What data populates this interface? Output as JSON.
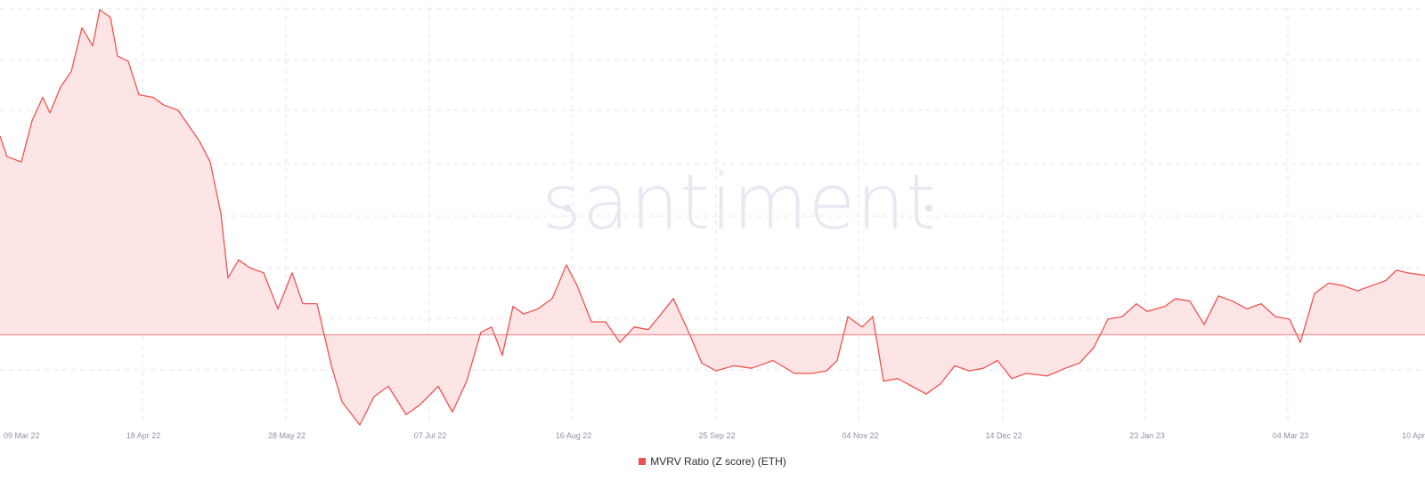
{
  "watermark": "santiment",
  "legend": {
    "label": "MVRV Ratio (Z score) (ETH)"
  },
  "colors": {
    "series": "#ef5350",
    "fill": "#fde2e2",
    "baseline": "#f2a3a3"
  },
  "chart_data": {
    "type": "area",
    "title": "",
    "xlabel": "",
    "ylabel": "",
    "x_ticks": [
      "09 Mar 22",
      "18 Apr 22",
      "28 May 22",
      "07 Jul 22",
      "16 Aug 22",
      "25 Sep 22",
      "04 Nov 22",
      "14 Dec 22",
      "23 Jan 23",
      "04 Mar 23",
      "10 Apr"
    ],
    "x_range": [
      "2022-03-09",
      "2023-04-13"
    ],
    "ylim": [
      -1.75,
      6.35
    ],
    "baseline": 0,
    "grid": true,
    "legend_position": "bottom-center",
    "series": [
      {
        "name": "MVRV Ratio (Z score) (ETH)",
        "points": [
          [
            "2022-03-09",
            3.85
          ],
          [
            "2022-03-11",
            3.45
          ],
          [
            "2022-03-15",
            3.35
          ],
          [
            "2022-03-18",
            4.15
          ],
          [
            "2022-03-21",
            4.6
          ],
          [
            "2022-03-23",
            4.3
          ],
          [
            "2022-03-26",
            4.8
          ],
          [
            "2022-03-29",
            5.1
          ],
          [
            "2022-04-01",
            5.95
          ],
          [
            "2022-04-04",
            5.6
          ],
          [
            "2022-04-06",
            6.3
          ],
          [
            "2022-04-09",
            6.15
          ],
          [
            "2022-04-11",
            5.4
          ],
          [
            "2022-04-14",
            5.3
          ],
          [
            "2022-04-17",
            4.65
          ],
          [
            "2022-04-21",
            4.6
          ],
          [
            "2022-04-24",
            4.45
          ],
          [
            "2022-04-28",
            4.35
          ],
          [
            "2022-05-01",
            4.05
          ],
          [
            "2022-05-04",
            3.75
          ],
          [
            "2022-05-07",
            3.35
          ],
          [
            "2022-05-10",
            2.35
          ],
          [
            "2022-05-12",
            1.1
          ],
          [
            "2022-05-15",
            1.45
          ],
          [
            "2022-05-18",
            1.3
          ],
          [
            "2022-05-22",
            1.2
          ],
          [
            "2022-05-26",
            0.5
          ],
          [
            "2022-05-30",
            1.2
          ],
          [
            "2022-06-02",
            0.6
          ],
          [
            "2022-06-06",
            0.6
          ],
          [
            "2022-06-10",
            -0.6
          ],
          [
            "2022-06-13",
            -1.3
          ],
          [
            "2022-06-18",
            -1.75
          ],
          [
            "2022-06-22",
            -1.2
          ],
          [
            "2022-06-26",
            -1.0
          ],
          [
            "2022-07-01",
            -1.55
          ],
          [
            "2022-07-05",
            -1.35
          ],
          [
            "2022-07-10",
            -1.0
          ],
          [
            "2022-07-14",
            -1.5
          ],
          [
            "2022-07-18",
            -0.9
          ],
          [
            "2022-07-22",
            0.05
          ],
          [
            "2022-07-25",
            0.15
          ],
          [
            "2022-07-28",
            -0.4
          ],
          [
            "2022-07-31",
            0.55
          ],
          [
            "2022-08-03",
            0.4
          ],
          [
            "2022-08-07",
            0.5
          ],
          [
            "2022-08-11",
            0.7
          ],
          [
            "2022-08-15",
            1.35
          ],
          [
            "2022-08-18",
            0.95
          ],
          [
            "2022-08-22",
            0.25
          ],
          [
            "2022-08-26",
            0.25
          ],
          [
            "2022-08-30",
            -0.15
          ],
          [
            "2022-09-03",
            0.15
          ],
          [
            "2022-09-07",
            0.1
          ],
          [
            "2022-09-10",
            0.35
          ],
          [
            "2022-09-14",
            0.7
          ],
          [
            "2022-09-18",
            0.1
          ],
          [
            "2022-09-22",
            -0.55
          ],
          [
            "2022-09-26",
            -0.7
          ],
          [
            "2022-10-01",
            -0.6
          ],
          [
            "2022-10-06",
            -0.65
          ],
          [
            "2022-10-12",
            -0.5
          ],
          [
            "2022-10-18",
            -0.75
          ],
          [
            "2022-10-23",
            -0.75
          ],
          [
            "2022-10-27",
            -0.7
          ],
          [
            "2022-10-30",
            -0.5
          ],
          [
            "2022-11-02",
            0.35
          ],
          [
            "2022-11-06",
            0.15
          ],
          [
            "2022-11-09",
            0.35
          ],
          [
            "2022-11-12",
            -0.9
          ],
          [
            "2022-11-16",
            -0.85
          ],
          [
            "2022-11-20",
            -1.0
          ],
          [
            "2022-11-24",
            -1.15
          ],
          [
            "2022-11-28",
            -0.95
          ],
          [
            "2022-12-02",
            -0.6
          ],
          [
            "2022-12-06",
            -0.7
          ],
          [
            "2022-12-10",
            -0.65
          ],
          [
            "2022-12-14",
            -0.5
          ],
          [
            "2022-12-18",
            -0.85
          ],
          [
            "2022-12-22",
            -0.75
          ],
          [
            "2022-12-28",
            -0.8
          ],
          [
            "2023-01-02",
            -0.65
          ],
          [
            "2023-01-06",
            -0.55
          ],
          [
            "2023-01-10",
            -0.25
          ],
          [
            "2023-01-14",
            0.3
          ],
          [
            "2023-01-18",
            0.35
          ],
          [
            "2023-01-22",
            0.6
          ],
          [
            "2023-01-25",
            0.45
          ],
          [
            "2023-01-30",
            0.55
          ],
          [
            "2023-02-02",
            0.7
          ],
          [
            "2023-02-06",
            0.65
          ],
          [
            "2023-02-10",
            0.2
          ],
          [
            "2023-02-14",
            0.75
          ],
          [
            "2023-02-18",
            0.65
          ],
          [
            "2023-02-22",
            0.5
          ],
          [
            "2023-02-26",
            0.6
          ],
          [
            "2023-03-02",
            0.35
          ],
          [
            "2023-03-06",
            0.3
          ],
          [
            "2023-03-09",
            -0.15
          ],
          [
            "2023-03-13",
            0.8
          ],
          [
            "2023-03-17",
            1.0
          ],
          [
            "2023-03-21",
            0.95
          ],
          [
            "2023-03-25",
            0.85
          ],
          [
            "2023-03-29",
            0.95
          ],
          [
            "2023-04-02",
            1.05
          ],
          [
            "2023-04-05",
            1.25
          ],
          [
            "2023-04-08",
            1.2
          ],
          [
            "2023-04-13",
            1.15
          ]
        ]
      }
    ]
  }
}
